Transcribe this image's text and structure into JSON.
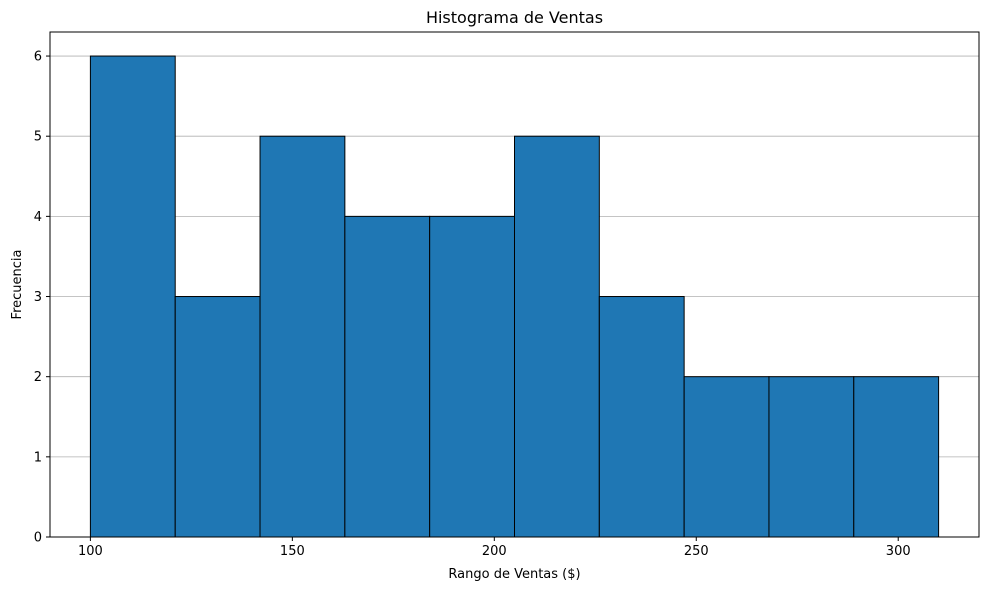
{
  "chart_data": {
    "type": "bar",
    "title": "Histograma de Ventas",
    "xlabel": "Rango de Ventas ($)",
    "ylabel": "Frecuencia",
    "bin_edges": [
      100,
      121,
      142,
      163,
      184,
      205,
      226,
      247,
      268,
      289,
      310
    ],
    "values": [
      6,
      3,
      5,
      4,
      4,
      5,
      3,
      2,
      2,
      2
    ],
    "xlim": [
      90,
      320
    ],
    "ylim": [
      0,
      6.3
    ],
    "xticks": [
      100,
      150,
      200,
      250,
      300
    ],
    "yticks": [
      0,
      1,
      2,
      3,
      4,
      5,
      6
    ],
    "grid": "y",
    "bar_color": "#1f77b4",
    "edge_color": "#000000",
    "grid_color": "#b0b0b0"
  }
}
